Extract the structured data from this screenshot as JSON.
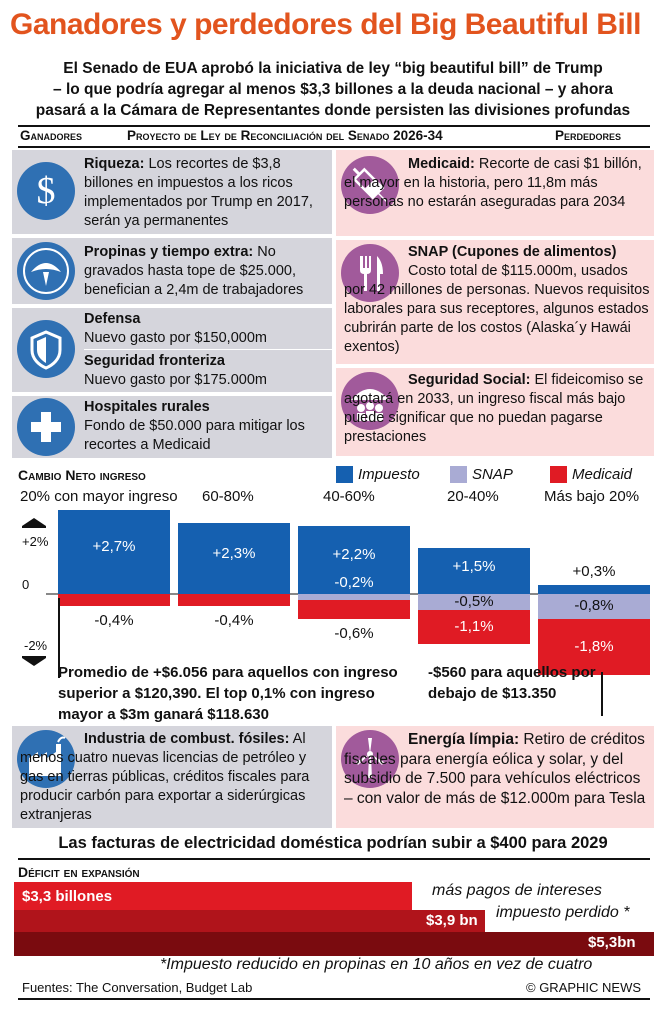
{
  "title": "Ganadores y perdedores del Big Beautiful Bill",
  "subtitle": {
    "line1": "El Senado de EUA aprobó la iniciativa de ley “big beautiful bill” de Trump",
    "line2": "– lo que podría agregar al menos $3,3 billones a la deuda nacional – y ahora",
    "line3": "pasará a la Cámara de Representantes donde persisten las divisiones profundas"
  },
  "headers": {
    "left": "Ganadores",
    "center": "Proyecto de Ley de Reconciliación del Senado  2026-34",
    "right": "Perdedores"
  },
  "winners": [
    {
      "title": "Riqueza:",
      "text": " Los recortes de $3,8 billones en impuestos a los ricos implementados por Trump en 2017,  serán ya permanentes",
      "icon": "dollar-icon"
    },
    {
      "title": "Propinas y tiempo extra:",
      "text": " No gravados hasta tope de $25.000, benefician a 2,4m de trabajadores",
      "icon": "dollar-seal-icon"
    },
    {
      "title": "Defensa",
      "text": "Nuevo gasto por $150,000m",
      "icon": "shield-icon"
    },
    {
      "title": "Seguridad fronteriza",
      "text": "Nuevo gasto por $175.000m"
    },
    {
      "title": "Hospitales rurales",
      "text": "Fondo de $50.000 para mitigar los recortes a Medicaid",
      "icon": "medical-cross-icon"
    }
  ],
  "losers": [
    {
      "title": "Medicaid:",
      "text": " Recorte de casi $1 billón, el mayor en la historia, pero 11,8m más personas no estarán aseguradas para 2034",
      "icon": "syringe-icon"
    },
    {
      "title": "SNAP (Cupones de alimentos)",
      "text": "Costo total de $115.000m, usados por 42 millones de personas. Nuevos requisitos laborales para sus receptores, algunos estados cubrirán parte de los costos (Alaska´y Hawái exentos)",
      "icon": "fork-knife-icon"
    },
    {
      "title": "Seguridad Social:",
      "text": " El fideicomiso se agotará en 2033, un ingreso fiscal más bajo puede significar que no puedan pagarse prestaciones",
      "icon": "umbrella-people-icon"
    }
  ],
  "chart_data": {
    "type": "bar",
    "title": "Cambio Neto ingreso",
    "legend": [
      "Impuesto",
      "SNAP",
      "Medicaid"
    ],
    "colors": {
      "Impuesto": "#1560b0",
      "SNAP": "#a9abd4",
      "Medicaid": "#e01b24"
    },
    "categories": [
      "20% con mayor ingreso",
      "60-80%",
      "40-60%",
      "20-40%",
      "Más bajo 20%"
    ],
    "series": [
      {
        "name": "Impuesto",
        "values": [
          2.7,
          2.3,
          2.2,
          1.5,
          0.3
        ]
      },
      {
        "name": "SNAP",
        "values": [
          0,
          0,
          -0.2,
          -0.5,
          -0.8
        ]
      },
      {
        "name": "Medicaid",
        "values": [
          -0.4,
          -0.4,
          -0.6,
          -1.1,
          -1.8
        ]
      }
    ],
    "labels": {
      "Impuesto": [
        "+2,7%",
        "+2,3%",
        "+2,2%",
        "+1,5%",
        "+0,3%"
      ],
      "SNAP": [
        "",
        "",
        "-0,2%",
        "-0,5%",
        "-0,8%"
      ],
      "Medicaid": [
        "-0,4%",
        "-0,4%",
        "-0,6%",
        "-1,1%",
        "-1,8%"
      ]
    },
    "y_ticks": [
      "+2%",
      "0",
      "-2%"
    ],
    "ylim": [
      -2,
      2
    ]
  },
  "callouts": {
    "top": "Promedio de +$6.056 para aquellos con ingreso superior a $120,390. El top 0,1% con ingreso mayor a $3m ganará  $118.630",
    "bottom": "-$560 para aquellos por debajo de $13.350"
  },
  "fossil": {
    "title": "Industria de combust. fósiles:",
    "text": " Al menos cuatro nuevas licencias de petróleo y gas en tierras públicas, créditos fiscales para producir carbón para exportar a siderúrgicas extranjeras"
  },
  "clean": {
    "title": "Energía límpia:",
    "text": " Retiro de créditos fiscales para energía eólica y solar, y del subsidio de 7.500 para vehículos eléctricos – con valor de más de $12.000m para Tesla"
  },
  "electricity": "Las facturas de electricidad doméstica podrían subir a $400 para 2029",
  "deficit": {
    "title": "Déficit en expansión",
    "bars": [
      {
        "label": "$3,3 billones",
        "value": 3.3,
        "note": "más pagos de intereses"
      },
      {
        "label": "$3,9 bn",
        "value": 3.9,
        "note": "impuesto perdido *"
      },
      {
        "label": "$5,3bn",
        "value": 5.3,
        "note": ""
      }
    ],
    "footnote": "*Impuesto reducido en propinas en 10 años en vez de cuatro"
  },
  "sources": "Fuentes: The Conversation, Budget Lab",
  "credit": "© GRAPHIC NEWS"
}
